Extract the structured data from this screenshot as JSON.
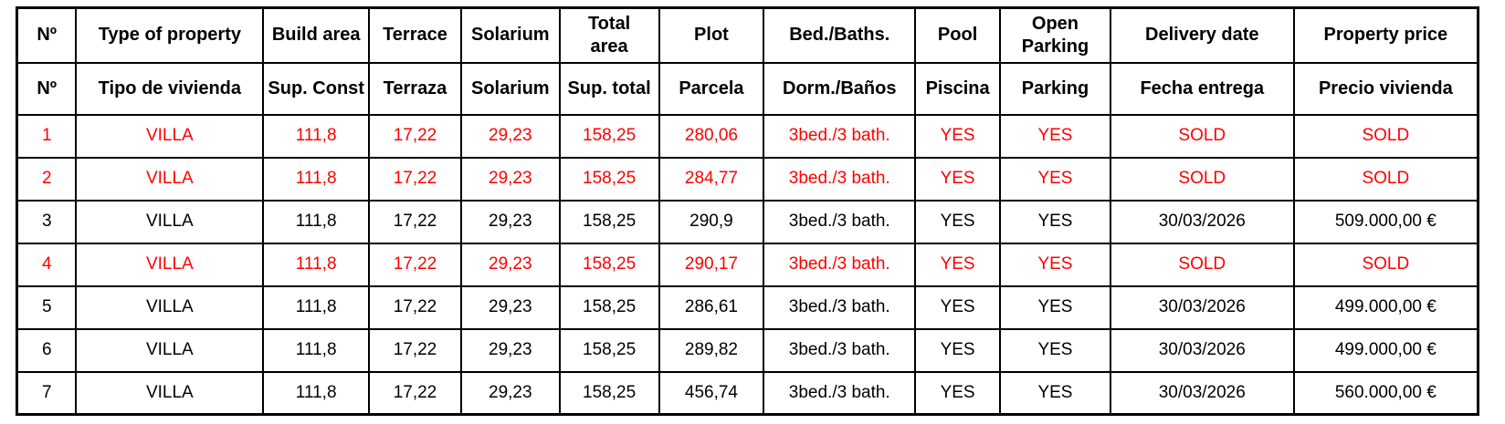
{
  "table": {
    "colors": {
      "sold_red": "#ff0000",
      "text_black": "#000000",
      "border_black": "#000000"
    },
    "columns": [
      {
        "key": "num",
        "en": "Nº",
        "es": "Nº"
      },
      {
        "key": "type",
        "en": "Type of property",
        "es": "Tipo de vivienda"
      },
      {
        "key": "build",
        "en": "Build area",
        "es": "Sup. Const"
      },
      {
        "key": "terrace",
        "en": "Terrace",
        "es": "Terraza"
      },
      {
        "key": "solarium",
        "en": "Solarium",
        "es": "Solarium"
      },
      {
        "key": "total",
        "en": "Total\narea",
        "es": "Sup. total"
      },
      {
        "key": "plot",
        "en": "Plot",
        "es": "Parcela"
      },
      {
        "key": "bedbaths",
        "en": "Bed./Baths.",
        "es": "Dorm./Baños"
      },
      {
        "key": "pool",
        "en": "Pool",
        "es": "Piscina"
      },
      {
        "key": "parking",
        "en": "Open\nParking",
        "es": "Parking"
      },
      {
        "key": "delivery",
        "en": "Delivery date",
        "es": "Fecha entrega"
      },
      {
        "key": "price",
        "en": "Property price",
        "es": "Precio vivienda"
      }
    ],
    "rows": [
      {
        "num": "1",
        "type": "VILLA",
        "build": "111,8",
        "terrace": "17,22",
        "solarium": "29,23",
        "total": "158,25",
        "plot": "280,06",
        "bedbaths": "3bed./3 bath.",
        "pool": "YES",
        "parking": "YES",
        "delivery": "SOLD",
        "price": "SOLD",
        "sold": true
      },
      {
        "num": "2",
        "type": "VILLA",
        "build": "111,8",
        "terrace": "17,22",
        "solarium": "29,23",
        "total": "158,25",
        "plot": "284,77",
        "bedbaths": "3bed./3 bath.",
        "pool": "YES",
        "parking": "YES",
        "delivery": "SOLD",
        "price": "SOLD",
        "sold": true
      },
      {
        "num": "3",
        "type": "VILLA",
        "build": "111,8",
        "terrace": "17,22",
        "solarium": "29,23",
        "total": "158,25",
        "plot": "290,9",
        "bedbaths": "3bed./3 bath.",
        "pool": "YES",
        "parking": "YES",
        "delivery": "30/03/2026",
        "price": "509.000,00 €",
        "sold": false
      },
      {
        "num": "4",
        "type": "VILLA",
        "build": "111,8",
        "terrace": "17,22",
        "solarium": "29,23",
        "total": "158,25",
        "plot": "290,17",
        "bedbaths": "3bed./3 bath.",
        "pool": "YES",
        "parking": "YES",
        "delivery": "SOLD",
        "price": "SOLD",
        "sold": true
      },
      {
        "num": "5",
        "type": "VILLA",
        "build": "111,8",
        "terrace": "17,22",
        "solarium": "29,23",
        "total": "158,25",
        "plot": "286,61",
        "bedbaths": "3bed./3 bath.",
        "pool": "YES",
        "parking": "YES",
        "delivery": "30/03/2026",
        "price": "499.000,00 €",
        "sold": false
      },
      {
        "num": "6",
        "type": "VILLA",
        "build": "111,8",
        "terrace": "17,22",
        "solarium": "29,23",
        "total": "158,25",
        "plot": "289,82",
        "bedbaths": "3bed./3 bath.",
        "pool": "YES",
        "parking": "YES",
        "delivery": "30/03/2026",
        "price": "499.000,00 €",
        "sold": false
      },
      {
        "num": "7",
        "type": "VILLA",
        "build": "111,8",
        "terrace": "17,22",
        "solarium": "29,23",
        "total": "158,25",
        "plot": "456,74",
        "bedbaths": "3bed./3 bath.",
        "pool": "YES",
        "parking": "YES",
        "delivery": "30/03/2026",
        "price": "560.000,00 €",
        "sold": false
      }
    ]
  }
}
